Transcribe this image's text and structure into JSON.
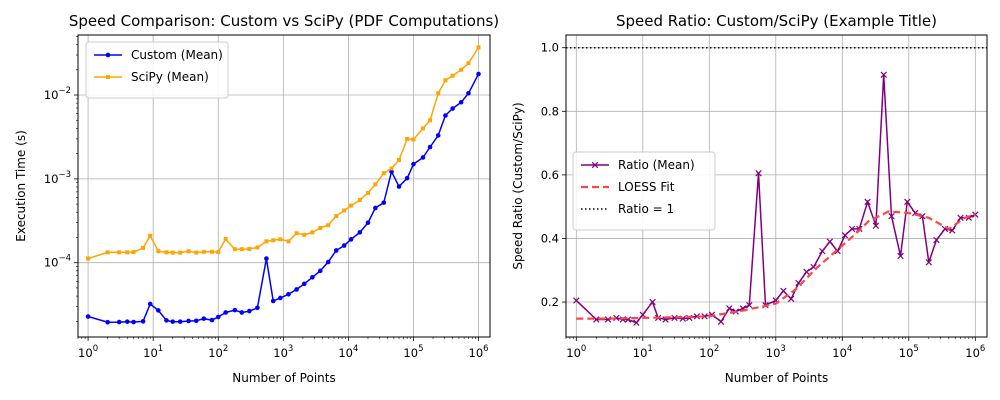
{
  "chart_data": [
    {
      "type": "line",
      "title": "Speed Comparison: Custom vs SciPy (PDF Computations)",
      "xlabel": "Number of Points",
      "ylabel": "Execution Time (s)",
      "xscale": "log",
      "yscale": "log",
      "xlim": [
        0.7,
        1500000
      ],
      "ylim": [
        1.3e-05,
        0.052
      ],
      "x_ticks": [
        {
          "value": 1,
          "base": "10",
          "exp": "0"
        },
        {
          "value": 10,
          "base": "10",
          "exp": "1"
        },
        {
          "value": 100,
          "base": "10",
          "exp": "2"
        },
        {
          "value": 1000,
          "base": "10",
          "exp": "3"
        },
        {
          "value": 10000,
          "base": "10",
          "exp": "4"
        },
        {
          "value": 100000,
          "base": "10",
          "exp": "5"
        },
        {
          "value": 1000000,
          "base": "10",
          "exp": "6"
        }
      ],
      "y_ticks": [
        {
          "value": 0.0001,
          "base": "10",
          "exp": "−4"
        },
        {
          "value": 0.001,
          "base": "10",
          "exp": "−3"
        },
        {
          "value": 0.01,
          "base": "10",
          "exp": "−2"
        }
      ],
      "grid": true,
      "legend_position": "top-left",
      "x": [
        1,
        2,
        3,
        4,
        5,
        7,
        9,
        12,
        16,
        20,
        26,
        35,
        46,
        60,
        80,
        100,
        130,
        180,
        230,
        300,
        400,
        550,
        700,
        900,
        1200,
        1600,
        2100,
        2800,
        3700,
        4900,
        6500,
        8600,
        11000,
        15000,
        20000,
        26000,
        35000,
        46000,
        60000,
        80000,
        100000,
        140000,
        180000,
        240000,
        310000,
        400000,
        540000,
        700000,
        1000000
      ],
      "series": [
        {
          "name": "Custom (Mean)",
          "color": "#0000ff",
          "marker": "dot",
          "values": [
            2.28e-05,
            1.95e-05,
            1.96e-05,
            1.98e-05,
            1.96e-05,
            2e-05,
            3.22e-05,
            2.7e-05,
            2.05e-05,
            1.98e-05,
            1.98e-05,
            2.02e-05,
            2.03e-05,
            2.15e-05,
            2.07e-05,
            2.25e-05,
            2.55e-05,
            2.72e-05,
            2.55e-05,
            2.65e-05,
            2.9e-05,
            0.000112,
            3.5e-05,
            3.8e-05,
            4.2e-05,
            4.8e-05,
            5.6e-05,
            6.7e-05,
            8e-05,
            0.000102,
            0.00014,
            0.00016,
            0.00019,
            0.00023,
            0.0003,
            0.00045,
            0.00052,
            0.00122,
            0.00081,
            0.00102,
            0.0015,
            0.0018,
            0.0024,
            0.0033,
            0.0057,
            0.0069,
            0.0082,
            0.0105,
            0.0178
          ]
        },
        {
          "name": "SciPy (Mean)",
          "color": "#ffa500",
          "marker": "square",
          "values": [
            0.000112,
            0.000133,
            0.000133,
            0.000133,
            0.000134,
            0.00015,
            0.00021,
            0.000137,
            0.000133,
            0.000132,
            0.000132,
            0.000137,
            0.000132,
            0.000135,
            0.000135,
            0.000134,
            0.000192,
            0.000145,
            0.000145,
            0.000146,
            0.000152,
            0.00018,
            0.000185,
            0.00019,
            0.00018,
            0.000225,
            0.000215,
            0.00023,
            0.00026,
            0.00028,
            0.00036,
            0.00042,
            0.00048,
            0.00056,
            0.00068,
            0.00086,
            0.00117,
            0.00133,
            0.00168,
            0.003,
            0.00295,
            0.004,
            0.005,
            0.0105,
            0.015,
            0.017,
            0.02,
            0.024,
            0.037
          ]
        }
      ]
    },
    {
      "type": "line",
      "title": "Speed Ratio: Custom/SciPy (Example Title)",
      "xlabel": "Number of Points",
      "ylabel": "Speed Ratio (Custom/SciPy)",
      "xscale": "log",
      "yscale": "linear",
      "xlim": [
        0.7,
        1500000
      ],
      "ylim": [
        0.09,
        1.04
      ],
      "x_ticks": [
        {
          "value": 1,
          "base": "10",
          "exp": "0"
        },
        {
          "value": 10,
          "base": "10",
          "exp": "1"
        },
        {
          "value": 100,
          "base": "10",
          "exp": "2"
        },
        {
          "value": 1000,
          "base": "10",
          "exp": "3"
        },
        {
          "value": 10000,
          "base": "10",
          "exp": "4"
        },
        {
          "value": 100000,
          "base": "10",
          "exp": "5"
        },
        {
          "value": 1000000,
          "base": "10",
          "exp": "6"
        }
      ],
      "y_ticks": [
        {
          "value": 0.2,
          "label": "0.2"
        },
        {
          "value": 0.4,
          "label": "0.4"
        },
        {
          "value": 0.6,
          "label": "0.6"
        },
        {
          "value": 0.8,
          "label": "0.8"
        },
        {
          "value": 1.0,
          "label": "1.0"
        }
      ],
      "grid": true,
      "legend_position": "center-left",
      "x": [
        1,
        2,
        3,
        4,
        5,
        6,
        8,
        10,
        14,
        17,
        22,
        30,
        40,
        50,
        65,
        85,
        110,
        150,
        200,
        250,
        320,
        400,
        550,
        700,
        1000,
        1300,
        1700,
        2200,
        2900,
        3700,
        5000,
        6500,
        8500,
        11000,
        14000,
        18000,
        24000,
        32000,
        42000,
        55000,
        75000,
        95000,
        125000,
        160000,
        200000,
        260000,
        350000,
        450000,
        600000,
        800000,
        1000000
      ],
      "series": [
        {
          "name": "Ratio (Mean)",
          "color": "#800080",
          "marker": "x",
          "values": [
            0.205,
            0.145,
            0.145,
            0.15,
            0.145,
            0.145,
            0.135,
            0.16,
            0.2,
            0.15,
            0.145,
            0.15,
            0.148,
            0.15,
            0.155,
            0.155,
            0.16,
            0.138,
            0.18,
            0.17,
            0.18,
            0.19,
            0.605,
            0.19,
            0.205,
            0.235,
            0.21,
            0.26,
            0.295,
            0.31,
            0.36,
            0.39,
            0.36,
            0.41,
            0.43,
            0.43,
            0.515,
            0.44,
            0.915,
            0.47,
            0.345,
            0.515,
            0.48,
            0.47,
            0.325,
            0.395,
            0.43,
            0.425,
            0.465,
            0.465,
            0.475
          ]
        },
        {
          "name": "LOESS Fit",
          "color": "#ff4444",
          "marker": "none",
          "x": [
            1,
            3,
            10,
            30,
            100,
            300,
            700,
            1000,
            2000,
            4000,
            8000,
            15000,
            25000,
            50000,
            100000,
            200000,
            400000,
            700000,
            1000000
          ],
          "values": [
            0.148,
            0.148,
            0.15,
            0.152,
            0.155,
            0.172,
            0.188,
            0.195,
            0.24,
            0.305,
            0.36,
            0.41,
            0.455,
            0.485,
            0.48,
            0.465,
            0.43,
            0.465,
            0.475
          ]
        },
        {
          "name": "Ratio = 1",
          "color": "#000000",
          "marker": "none",
          "constant": 1.0
        }
      ]
    }
  ]
}
